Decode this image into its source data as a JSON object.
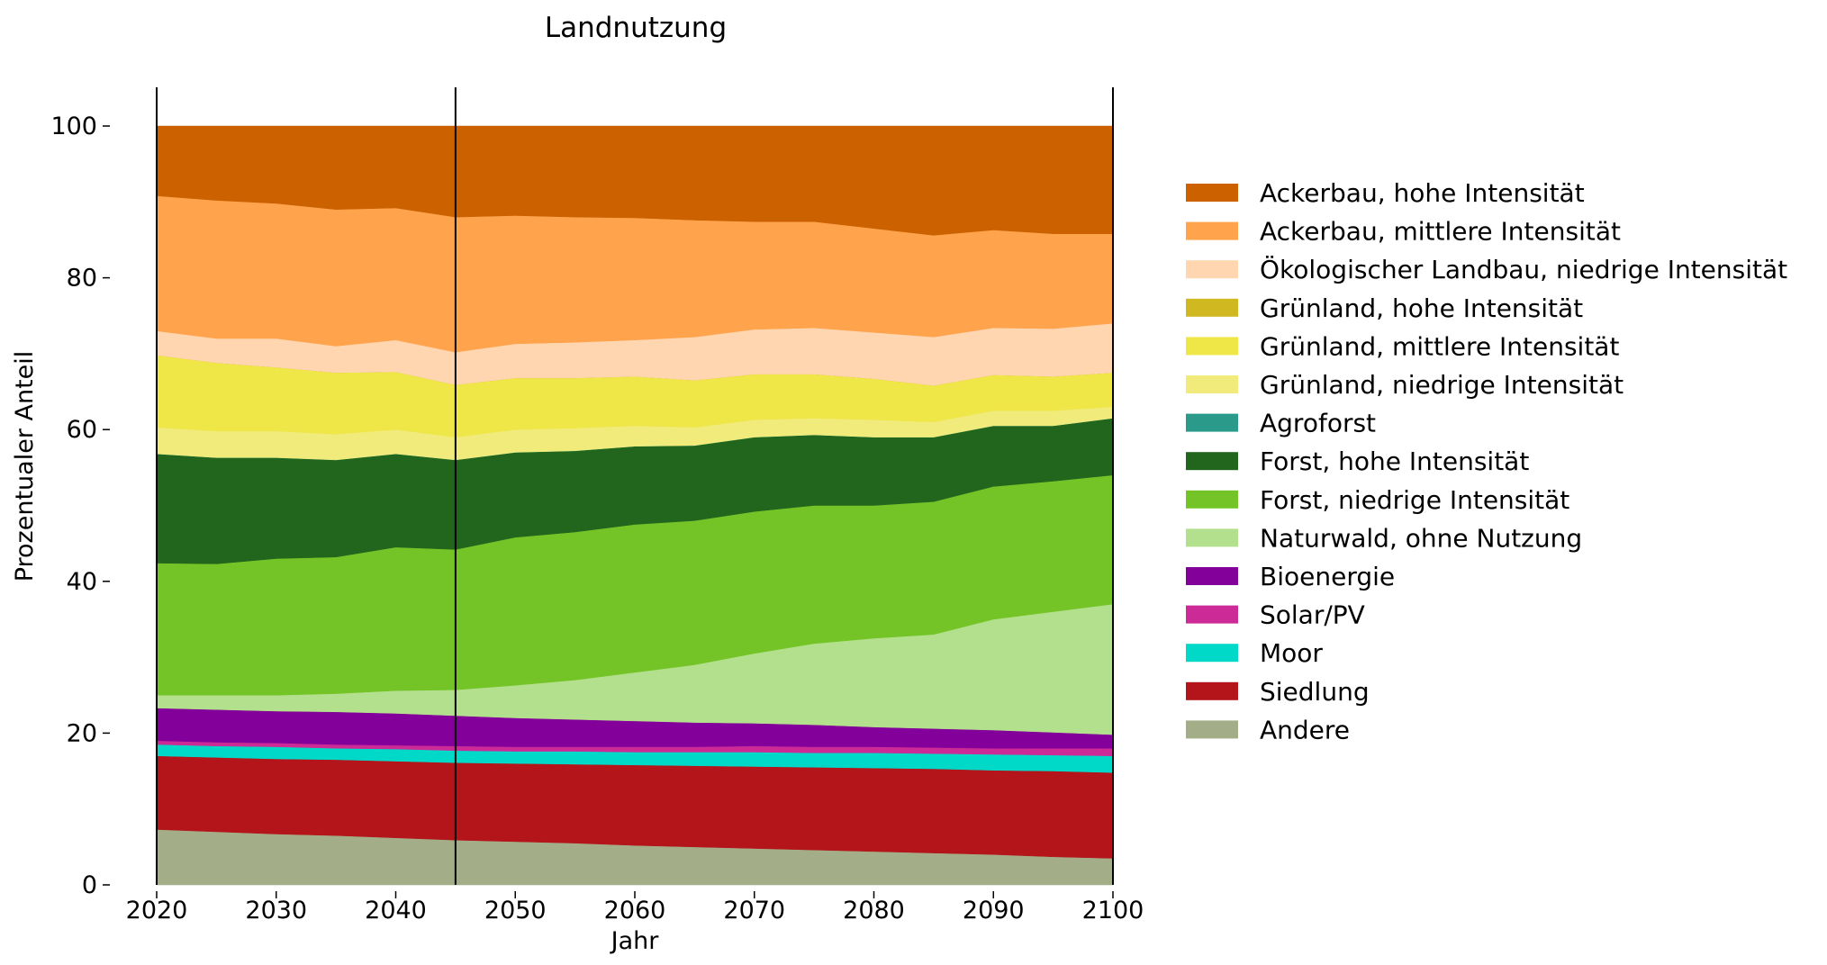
{
  "chart_data": {
    "type": "area",
    "title": "Landnutzung",
    "xlabel": "Jahr",
    "ylabel": "Prozentualer Anteil",
    "xlim": [
      2020,
      2100
    ],
    "ylim": [
      0,
      100
    ],
    "xticks": [
      "2020",
      "2030",
      "2040",
      "2050",
      "2060",
      "2070",
      "2080",
      "2090",
      "2100"
    ],
    "yticks": [
      "0",
      "20",
      "40",
      "60",
      "80",
      "100"
    ],
    "vertical_markers": [
      2020,
      2045,
      2100
    ],
    "legend_placement": "right",
    "x": [
      2020,
      2025,
      2030,
      2035,
      2040,
      2045,
      2050,
      2055,
      2060,
      2065,
      2070,
      2075,
      2080,
      2085,
      2090,
      2095,
      2100
    ],
    "series": [
      {
        "name": "Andere",
        "color": "#a3ad87",
        "values": [
          7.3,
          7.0,
          6.7,
          6.5,
          6.2,
          5.9,
          5.7,
          5.5,
          5.2,
          5.0,
          4.8,
          4.6,
          4.4,
          4.2,
          4.0,
          3.7,
          3.5
        ]
      },
      {
        "name": "Siedlung",
        "color": "#b3151a",
        "values": [
          9.7,
          9.8,
          9.9,
          10.0,
          10.1,
          10.2,
          10.3,
          10.4,
          10.6,
          10.7,
          10.8,
          10.9,
          11.0,
          11.1,
          11.1,
          11.3,
          11.3
        ]
      },
      {
        "name": "Moor",
        "color": "#00d9c8",
        "values": [
          1.5,
          1.5,
          1.6,
          1.5,
          1.6,
          1.6,
          1.6,
          1.7,
          1.7,
          1.8,
          1.9,
          1.9,
          2.0,
          2.0,
          2.1,
          2.1,
          2.2
        ]
      },
      {
        "name": "Solar/PV",
        "color": "#cc2a96",
        "values": [
          0.5,
          0.5,
          0.5,
          0.5,
          0.5,
          0.6,
          0.6,
          0.6,
          0.7,
          0.7,
          0.8,
          0.8,
          0.8,
          0.8,
          0.8,
          0.9,
          1.0
        ]
      },
      {
        "name": "Bioenergie",
        "color": "#84009a",
        "values": [
          4.3,
          4.3,
          4.2,
          4.3,
          4.2,
          4.0,
          3.8,
          3.6,
          3.4,
          3.2,
          3.0,
          2.9,
          2.6,
          2.5,
          2.4,
          2.1,
          1.8
        ]
      },
      {
        "name": "Naturwald, ohne Nutzung",
        "color": "#b3e08c",
        "values": [
          1.7,
          1.9,
          2.1,
          2.4,
          3.0,
          3.4,
          4.3,
          5.2,
          6.4,
          7.6,
          9.2,
          10.7,
          11.7,
          12.4,
          14.6,
          15.9,
          17.2
        ]
      },
      {
        "name": "Forst, niedrige Intensität",
        "color": "#74c428",
        "values": [
          17.4,
          17.3,
          18.0,
          18.0,
          18.9,
          18.5,
          19.5,
          19.5,
          19.5,
          19.0,
          18.7,
          18.2,
          17.5,
          17.5,
          17.5,
          17.2,
          17.0
        ]
      },
      {
        "name": "Forst, hohe Intensität",
        "color": "#22661e",
        "values": [
          14.4,
          14.0,
          13.3,
          12.8,
          12.3,
          11.8,
          11.2,
          10.7,
          10.3,
          9.9,
          9.8,
          9.3,
          9.0,
          8.5,
          8.0,
          7.3,
          7.5
        ]
      },
      {
        "name": "Agroforst",
        "color": "#2a9a8a",
        "values": [
          0,
          0,
          0,
          0,
          0,
          0,
          0,
          0,
          0,
          0,
          0,
          0,
          0,
          0,
          0,
          0,
          0
        ]
      },
      {
        "name": "Grünland, niedrige Intensität",
        "color": "#f0eb7a",
        "values": [
          3.5,
          3.5,
          3.5,
          3.4,
          3.2,
          3.0,
          3.0,
          3.0,
          2.7,
          2.4,
          2.3,
          2.2,
          2.3,
          2.0,
          2.0,
          2.0,
          1.5
        ]
      },
      {
        "name": "Grünland, mittlere Intensität",
        "color": "#efe647",
        "values": [
          9.5,
          9.0,
          8.4,
          8.1,
          7.6,
          6.9,
          6.8,
          6.6,
          6.5,
          6.2,
          6.0,
          5.8,
          5.4,
          4.8,
          4.7,
          4.5,
          4.5
        ]
      },
      {
        "name": "Grünland, hohe Intensität",
        "color": "#d0b820",
        "values": [
          0,
          0,
          0,
          0,
          0,
          0,
          0,
          0,
          0,
          0,
          0,
          0,
          0,
          0,
          0,
          0,
          0
        ]
      },
      {
        "name": "Ökologischer Landbau, niedrige Intensität",
        "color": "#ffd6b0",
        "values": [
          3.2,
          3.2,
          3.8,
          3.5,
          4.2,
          4.3,
          4.5,
          4.7,
          4.8,
          5.7,
          5.9,
          6.1,
          6.1,
          6.4,
          6.2,
          6.3,
          6.5
        ]
      },
      {
        "name": "Ackerbau, mittlere Intensität",
        "color": "#ffa34d",
        "values": [
          17.8,
          18.2,
          17.8,
          18.0,
          17.4,
          17.8,
          16.9,
          16.5,
          16.1,
          15.4,
          14.2,
          14.0,
          13.7,
          13.4,
          12.9,
          12.5,
          11.8
        ]
      },
      {
        "name": "Ackerbau, hohe Intensität",
        "color": "#cc6100",
        "values": [
          9.2,
          9.8,
          10.2,
          11.0,
          10.8,
          12.0,
          11.8,
          12.0,
          12.1,
          12.4,
          12.6,
          12.6,
          13.5,
          14.4,
          13.7,
          14.2,
          14.2
        ]
      }
    ]
  }
}
